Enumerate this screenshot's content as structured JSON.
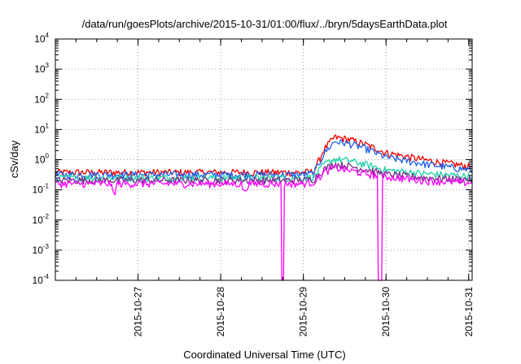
{
  "chart_data": {
    "type": "line",
    "title": "/data/run/goesPlots/archive/2015-10-31/01:00/flux/../bryn/5daysEarthData.plot",
    "xlabel": "Coordinated Universal Time (UTC)",
    "ylabel": "cSv/day",
    "y_scale": "log",
    "ylim": [
      0.0001,
      10000
    ],
    "xlim": [
      "2015-10-26T00:00",
      "2015-10-31T01:00"
    ],
    "y_ticks": [
      {
        "base": "10",
        "exp": "-4"
      },
      {
        "base": "10",
        "exp": "-3"
      },
      {
        "base": "10",
        "exp": "-2"
      },
      {
        "base": "10",
        "exp": "-1"
      },
      {
        "base": "10",
        "exp": "0"
      },
      {
        "base": "10",
        "exp": "1"
      },
      {
        "base": "10",
        "exp": "2"
      },
      {
        "base": "10",
        "exp": "3"
      },
      {
        "base": "10",
        "exp": "4"
      }
    ],
    "x_ticks": [
      "2015-10-27",
      "2015-10-28",
      "2015-10-29",
      "2015-10-30",
      "2015-10-31"
    ],
    "grid": true,
    "legend": "none",
    "series": [
      {
        "color": "#ee0000",
        "values": [
          [
            "2015-10-26T00:00",
            0.38
          ],
          [
            "2015-10-27T00:00",
            0.38
          ],
          [
            "2015-10-28T00:00",
            0.38
          ],
          [
            "2015-10-29T00:00",
            0.38
          ],
          [
            "2015-10-29T03:00",
            0.4
          ],
          [
            "2015-10-29T06:00",
            2.2
          ],
          [
            "2015-10-29T09:00",
            5.5
          ],
          [
            "2015-10-29T13:00",
            4.8
          ],
          [
            "2015-10-29T18:00",
            3.2
          ],
          [
            "2015-10-30T00:00",
            1.7
          ],
          [
            "2015-10-30T12:00",
            0.95
          ],
          [
            "2015-10-31T01:00",
            0.58
          ]
        ]
      },
      {
        "color": "#1f5fe8",
        "values": [
          [
            "2015-10-26T00:00",
            0.32
          ],
          [
            "2015-10-27T00:00",
            0.32
          ],
          [
            "2015-10-28T00:00",
            0.32
          ],
          [
            "2015-10-29T00:00",
            0.32
          ],
          [
            "2015-10-29T03:00",
            0.35
          ],
          [
            "2015-10-29T06:00",
            1.6
          ],
          [
            "2015-10-29T09:00",
            4.0
          ],
          [
            "2015-10-29T13:00",
            3.5
          ],
          [
            "2015-10-29T18:00",
            2.4
          ],
          [
            "2015-10-30T00:00",
            1.2
          ],
          [
            "2015-10-30T12:00",
            0.7
          ],
          [
            "2015-10-31T01:00",
            0.45
          ]
        ]
      },
      {
        "color": "#1ad1a5",
        "values": [
          [
            "2015-10-26T00:00",
            0.25
          ],
          [
            "2015-10-27T00:00",
            0.25
          ],
          [
            "2015-10-28T00:00",
            0.25
          ],
          [
            "2015-10-29T00:00",
            0.25
          ],
          [
            "2015-10-29T03:00",
            0.27
          ],
          [
            "2015-10-29T06:00",
            0.7
          ],
          [
            "2015-10-29T09:00",
            1.05
          ],
          [
            "2015-10-29T13:00",
            0.95
          ],
          [
            "2015-10-29T18:00",
            0.7
          ],
          [
            "2015-10-30T00:00",
            0.45
          ],
          [
            "2015-10-30T12:00",
            0.34
          ],
          [
            "2015-10-31T01:00",
            0.28
          ]
        ]
      },
      {
        "color": "#7a2a8a",
        "values": [
          [
            "2015-10-26T00:00",
            0.21
          ],
          [
            "2015-10-27T00:00",
            0.21
          ],
          [
            "2015-10-28T00:00",
            0.21
          ],
          [
            "2015-10-29T00:00",
            0.21
          ],
          [
            "2015-10-29T03:00",
            0.23
          ],
          [
            "2015-10-29T06:00",
            0.48
          ],
          [
            "2015-10-29T09:00",
            0.72
          ],
          [
            "2015-10-29T13:00",
            0.62
          ],
          [
            "2015-10-29T18:00",
            0.48
          ],
          [
            "2015-10-30T00:00",
            0.33
          ],
          [
            "2015-10-30T12:00",
            0.25
          ],
          [
            "2015-10-31T01:00",
            0.22
          ]
        ]
      },
      {
        "color": "#ff00ff",
        "values": [
          [
            "2015-10-26T00:00",
            0.16
          ],
          [
            "2015-10-26T16:00",
            0.16
          ],
          [
            "2015-10-26T17:00",
            0.07
          ],
          [
            "2015-10-26T18:00",
            0.16
          ],
          [
            "2015-10-28T06:00",
            0.16
          ],
          [
            "2015-10-28T07:00",
            0.08
          ],
          [
            "2015-10-28T08:00",
            0.16
          ],
          [
            "2015-10-28T17:30",
            0.16
          ],
          [
            "2015-10-28T17:45",
            0.0001
          ],
          [
            "2015-10-28T18:15",
            0.0001
          ],
          [
            "2015-10-28T18:30",
            0.16
          ],
          [
            "2015-10-29T00:00",
            0.16
          ],
          [
            "2015-10-29T03:00",
            0.18
          ],
          [
            "2015-10-29T06:00",
            0.38
          ],
          [
            "2015-10-29T09:00",
            0.55
          ],
          [
            "2015-10-29T13:00",
            0.45
          ],
          [
            "2015-10-29T18:00",
            0.34
          ],
          [
            "2015-10-29T21:30",
            0.3
          ],
          [
            "2015-10-29T21:45",
            0.0001
          ],
          [
            "2015-10-29T22:45",
            0.0001
          ],
          [
            "2015-10-29T23:00",
            0.28
          ],
          [
            "2015-10-30T12:00",
            0.2
          ],
          [
            "2015-10-31T01:00",
            0.17
          ]
        ]
      }
    ]
  }
}
